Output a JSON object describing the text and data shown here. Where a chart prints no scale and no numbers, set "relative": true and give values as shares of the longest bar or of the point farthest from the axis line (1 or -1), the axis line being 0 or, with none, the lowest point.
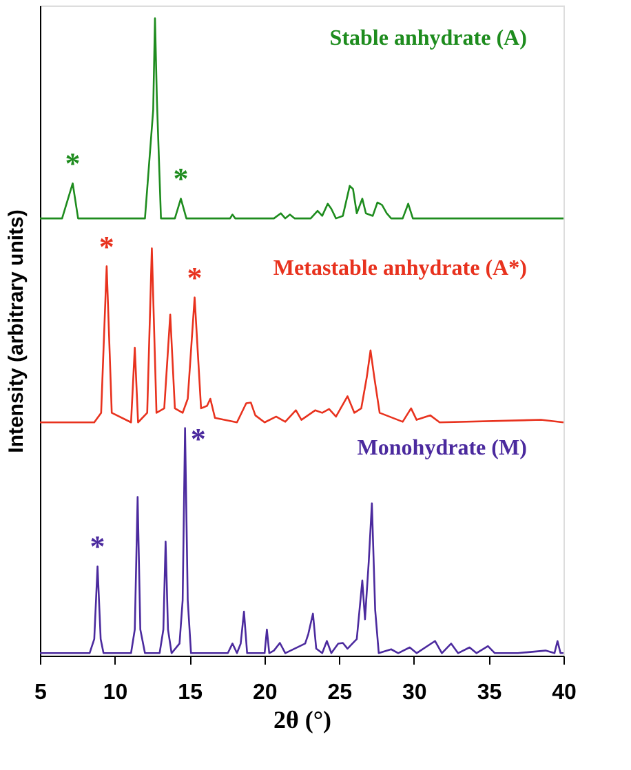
{
  "chart_data": {
    "type": "line",
    "relative": true,
    "xlabel": "2θ (°)",
    "ylabel": "Intensity (arbitrary units)",
    "xlim": [
      5,
      40
    ],
    "xticks": [
      5,
      10,
      15,
      20,
      25,
      30,
      35,
      40
    ],
    "grid": false,
    "marker": "none",
    "line_style": "solid",
    "series": [
      {
        "name": "Stable anhydrate (A)",
        "color": "#1e8c1e",
        "x": [
          5,
          6.48,
          7.19,
          7.55,
          12.02,
          12.57,
          12.69,
          12.82,
          13.09,
          14.02,
          14.42,
          14.79,
          17.71,
          17.87,
          18.05,
          20.64,
          21.1,
          21.4,
          21.71,
          22.02,
          23.1,
          23.56,
          23.87,
          24.24,
          24.48,
          24.79,
          25.25,
          25.71,
          25.93,
          26.18,
          26.55,
          26.79,
          27.25,
          27.56,
          27.87,
          28.18,
          28.48,
          29.25,
          29.62,
          29.93,
          40
        ],
        "values": [
          0.686,
          0.686,
          0.741,
          0.686,
          0.686,
          0.856,
          1.0,
          0.871,
          0.686,
          0.686,
          0.717,
          0.686,
          0.686,
          0.692,
          0.686,
          0.686,
          0.694,
          0.686,
          0.692,
          0.686,
          0.686,
          0.698,
          0.69,
          0.709,
          0.701,
          0.686,
          0.69,
          0.737,
          0.732,
          0.694,
          0.717,
          0.694,
          0.69,
          0.711,
          0.707,
          0.694,
          0.686,
          0.686,
          0.709,
          0.686,
          0.686
        ]
      },
      {
        "name": "Metastable anhydrate (A*)",
        "color": "#e8321e",
        "x": [
          5,
          8.63,
          9.09,
          9.46,
          9.8,
          11.09,
          11.34,
          11.56,
          12.17,
          12.48,
          12.79,
          13.31,
          13.71,
          14.02,
          14.54,
          14.88,
          15.34,
          15.77,
          16.17,
          16.39,
          16.7,
          18.17,
          18.79,
          19.1,
          19.4,
          20.02,
          20.79,
          21.4,
          22.11,
          22.48,
          23.41,
          23.87,
          24.33,
          24.79,
          25.56,
          26.02,
          26.48,
          26.85,
          27.1,
          27.35,
          27.71,
          29.25,
          29.81,
          30.18,
          31.1,
          31.72,
          38.49,
          40
        ],
        "values": [
          0.366,
          0.366,
          0.381,
          0.611,
          0.381,
          0.366,
          0.483,
          0.366,
          0.381,
          0.639,
          0.381,
          0.388,
          0.535,
          0.388,
          0.381,
          0.403,
          0.562,
          0.388,
          0.392,
          0.403,
          0.373,
          0.366,
          0.396,
          0.397,
          0.377,
          0.366,
          0.375,
          0.367,
          0.385,
          0.37,
          0.385,
          0.381,
          0.387,
          0.375,
          0.407,
          0.381,
          0.388,
          0.437,
          0.479,
          0.437,
          0.381,
          0.367,
          0.388,
          0.37,
          0.377,
          0.366,
          0.37,
          0.366
        ]
      },
      {
        "name": "Monohydrate (M)",
        "color": "#4b2a9e",
        "x": [
          5,
          8.32,
          8.63,
          8.85,
          9.06,
          9.25,
          11.09,
          11.34,
          11.53,
          11.71,
          12.02,
          13.0,
          13.25,
          13.4,
          13.56,
          13.8,
          14.33,
          14.54,
          14.7,
          14.88,
          15.1,
          17.56,
          17.87,
          18.17,
          18.42,
          18.64,
          18.85,
          20.02,
          20.17,
          20.33,
          20.64,
          21.04,
          21.4,
          22.73,
          22.94,
          23.25,
          23.47,
          23.87,
          24.18,
          24.48,
          24.94,
          25.25,
          25.56,
          26.18,
          26.55,
          26.73,
          26.98,
          27.19,
          27.41,
          27.65,
          28.48,
          28.95,
          29.72,
          30.18,
          31.41,
          31.87,
          32.49,
          32.95,
          33.72,
          34.18,
          34.95,
          35.41,
          36.95,
          38.8,
          39.4,
          39.6,
          39.8,
          40
        ],
        "values": [
          0.004,
          0.004,
          0.026,
          0.14,
          0.026,
          0.004,
          0.004,
          0.041,
          0.249,
          0.041,
          0.004,
          0.004,
          0.041,
          0.179,
          0.041,
          0.004,
          0.019,
          0.087,
          0.357,
          0.087,
          0.004,
          0.004,
          0.019,
          0.004,
          0.019,
          0.069,
          0.004,
          0.004,
          0.041,
          0.004,
          0.008,
          0.02,
          0.004,
          0.019,
          0.034,
          0.066,
          0.011,
          0.004,
          0.023,
          0.004,
          0.019,
          0.02,
          0.011,
          0.026,
          0.118,
          0.057,
          0.147,
          0.239,
          0.072,
          0.004,
          0.01,
          0.004,
          0.013,
          0.004,
          0.023,
          0.004,
          0.019,
          0.004,
          0.013,
          0.004,
          0.015,
          0.004,
          0.004,
          0.008,
          0.004,
          0.023,
          0.004,
          0.004
        ]
      }
    ],
    "annotations": [
      {
        "text": "*",
        "x": 7.19,
        "y": 0.741
      },
      {
        "text": "*",
        "x": 14.42,
        "y": 0.717
      },
      {
        "text": "*",
        "x": 9.46,
        "y": 0.611
      },
      {
        "text": "*",
        "x": 15.34,
        "y": 0.562
      },
      {
        "text": "*",
        "x": 8.85,
        "y": 0.14
      },
      {
        "text": "*",
        "x": 14.7,
        "y": 0.357
      }
    ]
  }
}
